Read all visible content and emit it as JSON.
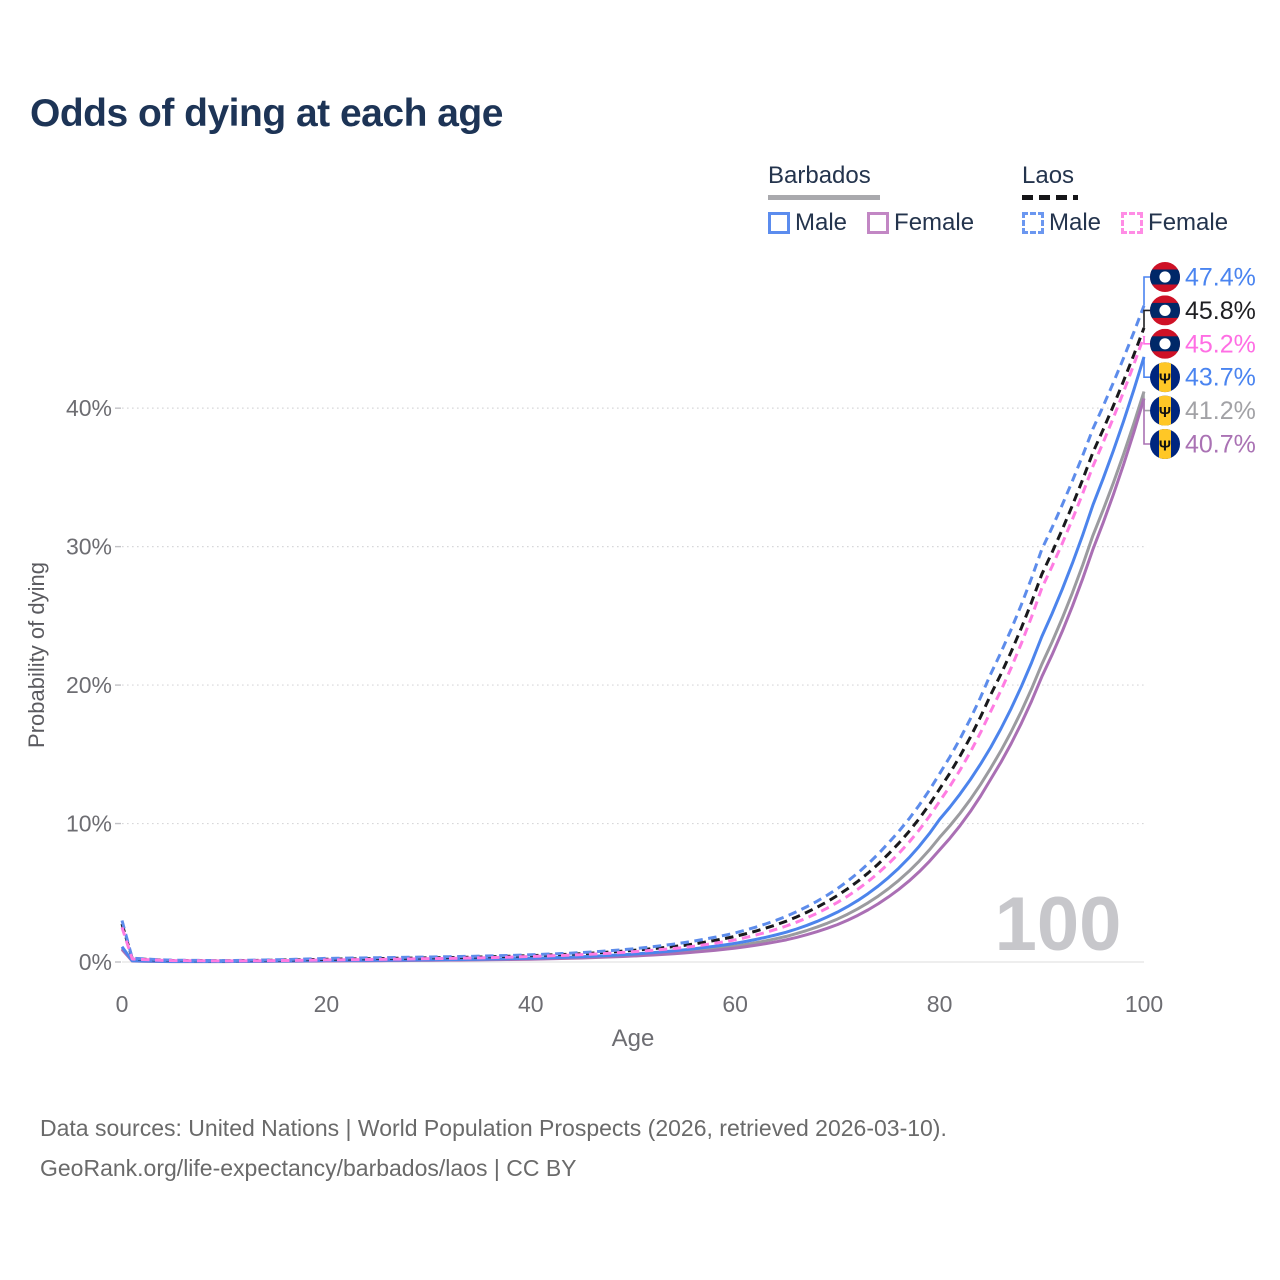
{
  "title": "Odds of dying at each age",
  "legend": {
    "groups": [
      {
        "label": "Barbados",
        "style": "solid",
        "items": [
          {
            "label": "Male",
            "color": "#5b8cee"
          },
          {
            "label": "Female",
            "color": "#c287c4"
          }
        ]
      },
      {
        "label": "Laos",
        "style": "dashed",
        "items": [
          {
            "label": "Male",
            "color": "#6b97f0"
          },
          {
            "label": "Female",
            "color": "#ff8ce5"
          }
        ]
      }
    ]
  },
  "watermark": "100",
  "footer": {
    "line1": "Data sources: United Nations | World Population Prospects (2026, retrieved 2026-03-10).",
    "line2": "GeoRank.org/life-expectancy/barbados/laos | CC BY"
  },
  "flag_colors": {
    "laos": {
      "red": "#ce1126",
      "blue": "#002868",
      "disc": "#ffffff"
    },
    "barbados": {
      "blue": "#00267f",
      "gold": "#ffc726",
      "trident": "#111111"
    }
  },
  "chart_data": {
    "type": "line",
    "title": "Odds of dying at each age",
    "xlabel": "Age",
    "ylabel": "Probability of dying",
    "xlim": [
      0,
      100
    ],
    "ylim": [
      0,
      48
    ],
    "grid": "horizontal-dotted",
    "legend_position": "top-right",
    "x_ticks": [
      {
        "v": 0,
        "label": "0"
      },
      {
        "v": 20,
        "label": "20"
      },
      {
        "v": 40,
        "label": "40"
      },
      {
        "v": 60,
        "label": "60"
      },
      {
        "v": 80,
        "label": "80"
      },
      {
        "v": 100,
        "label": "100"
      }
    ],
    "y_ticks": [
      {
        "v": 0,
        "label": "0%"
      },
      {
        "v": 10,
        "label": "10%"
      },
      {
        "v": 20,
        "label": "20%"
      },
      {
        "v": 30,
        "label": "30%"
      },
      {
        "v": 40,
        "label": "40%"
      }
    ],
    "ages": [
      0,
      1,
      5,
      10,
      15,
      20,
      25,
      30,
      35,
      40,
      45,
      50,
      55,
      60,
      65,
      70,
      75,
      80,
      85,
      90,
      95,
      100
    ],
    "series": [
      {
        "name": "Laos Male",
        "country": "Laos",
        "sex": "Male",
        "dash": true,
        "flag": "laos",
        "color": "#5d8ceb",
        "label_color": "#4a84f0",
        "end_label": "47.4%",
        "values": [
          3.0,
          0.28,
          0.13,
          0.1,
          0.16,
          0.26,
          0.31,
          0.36,
          0.42,
          0.52,
          0.68,
          0.95,
          1.4,
          2.1,
          3.3,
          5.3,
          8.6,
          13.6,
          20.8,
          29.8,
          38.5,
          47.4
        ]
      },
      {
        "name": "Laos Both sexes",
        "country": "Laos",
        "sex": "Both",
        "dash": true,
        "flag": "laos",
        "color": "#19191c",
        "label_color": "#1f1f22",
        "end_label": "45.8%",
        "values": [
          2.75,
          0.25,
          0.11,
          0.09,
          0.13,
          0.2,
          0.25,
          0.3,
          0.36,
          0.46,
          0.6,
          0.84,
          1.2,
          1.85,
          2.95,
          4.8,
          7.8,
          12.5,
          19.3,
          28.0,
          36.8,
          45.8
        ]
      },
      {
        "name": "Laos Female",
        "country": "Laos",
        "sex": "Female",
        "dash": true,
        "flag": "laos",
        "color": "#ff7ce2",
        "label_color": "#ff6ee4",
        "end_label": "45.2%",
        "values": [
          2.5,
          0.22,
          0.1,
          0.08,
          0.1,
          0.15,
          0.19,
          0.24,
          0.3,
          0.4,
          0.53,
          0.74,
          1.05,
          1.6,
          2.6,
          4.3,
          7.1,
          11.6,
          18.1,
          27.0,
          35.8,
          45.2
        ]
      },
      {
        "name": "Barbados Male",
        "country": "Barbados",
        "sex": "Male",
        "dash": false,
        "flag": "barbados",
        "color": "#4c84ec",
        "label_color": "#4a84f0",
        "end_label": "43.7%",
        "values": [
          1.1,
          0.09,
          0.04,
          0.04,
          0.07,
          0.11,
          0.13,
          0.16,
          0.2,
          0.27,
          0.38,
          0.57,
          0.88,
          1.35,
          2.15,
          3.6,
          6.1,
          10.3,
          15.5,
          23.5,
          33.0,
          43.7
        ]
      },
      {
        "name": "Barbados Both sexes",
        "country": "Barbados",
        "sex": "Both",
        "dash": false,
        "flag": "barbados",
        "color": "#9b9b9f",
        "label_color": "#a2a2a6",
        "end_label": "41.2%",
        "values": [
          1.0,
          0.08,
          0.035,
          0.035,
          0.06,
          0.09,
          0.11,
          0.14,
          0.17,
          0.23,
          0.33,
          0.49,
          0.75,
          1.15,
          1.85,
          3.1,
          5.3,
          9.0,
          14.0,
          21.5,
          30.8,
          41.2
        ]
      },
      {
        "name": "Barbados Female",
        "country": "Barbados",
        "sex": "Female",
        "dash": false,
        "flag": "barbados",
        "color": "#aa6fb4",
        "label_color": "#aa72b4",
        "end_label": "40.7%",
        "values": [
          0.9,
          0.07,
          0.03,
          0.03,
          0.05,
          0.07,
          0.09,
          0.12,
          0.15,
          0.2,
          0.29,
          0.43,
          0.65,
          1.0,
          1.6,
          2.7,
          4.7,
          8.1,
          13.2,
          20.6,
          29.8,
          40.7
        ]
      }
    ]
  }
}
